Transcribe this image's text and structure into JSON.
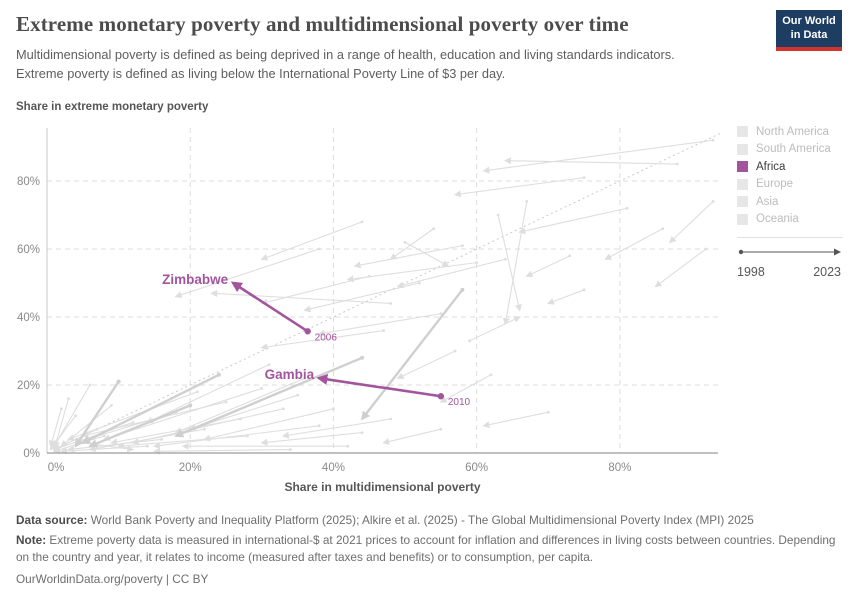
{
  "header": {
    "title": "Extreme monetary poverty and multidimensional poverty over time",
    "subtitle": "Multidimensional poverty is defined as being deprived in a range of health, education and living standards indicators. Extreme poverty is defined as living below the International Poverty Line of $3 per day.",
    "logo": {
      "line1": "Our World",
      "line2": "in Data",
      "bg_color": "#1d3d63",
      "accent_color": "#d0342c"
    }
  },
  "legend": {
    "items": [
      {
        "label": "North America",
        "swatch_color": "#e7e7e7",
        "text_color": "#bcbcbc",
        "active": false
      },
      {
        "label": "South America",
        "swatch_color": "#e7e7e7",
        "text_color": "#bcbcbc",
        "active": false
      },
      {
        "label": "Africa",
        "swatch_color": "#a2559c",
        "text_color": "#3b3b3b",
        "active": true
      },
      {
        "label": "Europe",
        "swatch_color": "#e7e7e7",
        "text_color": "#bcbcbc",
        "active": false
      },
      {
        "label": "Asia",
        "swatch_color": "#e7e7e7",
        "text_color": "#bcbcbc",
        "active": false
      },
      {
        "label": "Oceania",
        "swatch_color": "#e7e7e7",
        "text_color": "#bcbcbc",
        "active": false
      }
    ],
    "timeline": {
      "start": "1998",
      "end": "2023",
      "arrow_color": "#555555"
    }
  },
  "chart_data": {
    "type": "scatter",
    "subtype": "connected-arrow-trajectories",
    "title": "Extreme monetary poverty and multidimensional poverty over time",
    "xlabel": "Share in multidimensional poverty",
    "ylabel": "Share in extreme monetary poverty",
    "x_tick_values": [
      0,
      20,
      40,
      60,
      80
    ],
    "x_tick_labels": [
      "0%",
      "20%",
      "40%",
      "60%",
      "80%"
    ],
    "y_tick_values": [
      0,
      20,
      40,
      60,
      80
    ],
    "y_tick_labels": [
      "0%",
      "20%",
      "40%",
      "60%",
      "80%"
    ],
    "xlim": [
      0,
      94
    ],
    "ylim": [
      0,
      95.6
    ],
    "grid": "dashed",
    "time_range": {
      "start_year": "1998",
      "end_year": "2023"
    },
    "highlight_color": "#a2559c",
    "background_color": "#dedede",
    "highlighted_series": [
      {
        "name": "Zimbabwe",
        "color": "#a2559c",
        "start": {
          "x": 36.4,
          "y": 35.8,
          "year_label": "2006"
        },
        "end": {
          "x": 26.0,
          "y": 50.0
        }
      },
      {
        "name": "Gambia",
        "color": "#a2559c",
        "start": {
          "x": 55.0,
          "y": 16.7,
          "year_label": "2010"
        },
        "end": {
          "x": 38.0,
          "y": 22.0
        }
      }
    ],
    "reference_line": {
      "style": "dotted",
      "from": [
        1,
        1
      ],
      "to": [
        94,
        94
      ]
    },
    "background_series": [
      [
        12,
        9,
        1,
        1,
        1
      ],
      [
        9,
        14,
        2,
        2,
        1
      ],
      [
        16,
        4,
        3,
        1,
        1
      ],
      [
        6,
        20,
        1,
        2,
        1
      ],
      [
        22,
        7,
        6,
        1,
        1
      ],
      [
        4,
        11,
        0.5,
        1,
        1
      ],
      [
        14,
        2,
        2,
        0.5,
        1
      ],
      [
        8,
        5,
        1,
        0.5,
        1
      ],
      [
        18,
        12,
        4,
        3,
        1
      ],
      [
        3,
        16,
        1,
        1,
        1
      ],
      [
        28,
        5,
        10,
        2,
        1
      ],
      [
        7,
        7,
        1,
        1,
        1
      ],
      [
        2,
        13,
        0.5,
        2,
        1
      ],
      [
        42,
        2,
        19,
        2,
        1
      ],
      [
        34,
        1,
        15,
        0.5,
        1
      ],
      [
        5,
        3,
        12,
        1,
        1
      ],
      [
        33,
        13,
        12,
        3,
        1
      ],
      [
        30,
        19,
        8,
        4,
        1
      ],
      [
        38,
        8,
        15,
        2,
        1
      ],
      [
        25,
        15,
        5,
        5,
        1
      ],
      [
        36,
        22,
        18,
        6,
        1
      ],
      [
        31,
        26,
        14,
        9,
        1
      ],
      [
        21,
        18,
        3,
        4,
        1
      ],
      [
        40,
        13,
        22,
        4,
        1
      ],
      [
        27,
        10,
        9,
        3,
        1
      ],
      [
        44,
        6,
        30,
        3,
        1
      ],
      [
        35,
        17,
        20,
        7,
        1
      ],
      [
        48,
        10,
        33,
        5,
        1
      ],
      [
        10,
        21,
        4,
        2,
        2
      ],
      [
        24,
        23,
        5,
        3,
        2
      ],
      [
        58,
        48,
        44,
        10,
        2
      ],
      [
        44,
        28,
        18,
        5,
        2
      ],
      [
        20,
        14,
        6,
        2,
        2
      ],
      [
        48,
        44,
        23,
        47,
        1
      ],
      [
        52,
        50,
        36,
        42,
        1
      ],
      [
        60,
        56,
        42,
        51,
        1
      ],
      [
        47,
        36,
        30,
        31,
        1
      ],
      [
        55,
        41,
        38,
        35,
        1
      ],
      [
        45,
        52,
        30,
        44,
        1
      ],
      [
        58,
        61,
        43,
        55,
        1
      ],
      [
        64,
        57,
        49,
        49,
        1
      ],
      [
        67,
        74,
        64,
        38,
        1
      ],
      [
        63,
        70,
        66,
        42,
        1
      ],
      [
        57,
        30,
        49,
        22,
        1
      ],
      [
        62,
        23,
        55,
        15,
        1
      ],
      [
        70,
        12,
        61,
        8,
        1
      ],
      [
        55,
        7,
        47,
        3,
        1
      ],
      [
        59,
        33,
        66,
        40,
        1
      ],
      [
        54,
        66,
        48,
        57,
        1
      ],
      [
        50,
        62,
        56,
        55,
        1
      ],
      [
        38,
        60,
        18,
        46,
        1
      ],
      [
        44,
        68,
        30,
        57,
        1
      ],
      [
        93,
        92,
        61,
        83,
        1
      ],
      [
        88,
        85,
        64,
        86,
        1
      ],
      [
        75,
        81,
        57,
        76,
        1
      ],
      [
        81,
        72,
        66,
        65,
        1
      ],
      [
        86,
        66,
        78,
        57,
        1
      ],
      [
        92,
        60,
        85,
        49,
        1
      ],
      [
        73,
        58,
        67,
        52,
        1
      ],
      [
        75,
        48,
        70,
        44,
        1
      ],
      [
        93,
        74,
        87,
        62,
        1
      ]
    ]
  },
  "footer": {
    "data_source_label": "Data source:",
    "data_source_text": " World Bank Poverty and Inequality Platform (2025); Alkire et al. (2025) - The Global Multidimensional Poverty Index (MPI) 2025",
    "note_label": "Note:",
    "note_text": " Extreme poverty data is measured in international-$ at 2021 prices to account for inflation and differences in living costs between countries. Depending on the country and year, it relates to income (measured after taxes and benefits) or to consumption, per capita.",
    "link_text": "OurWorldinData.org/poverty | CC BY"
  }
}
